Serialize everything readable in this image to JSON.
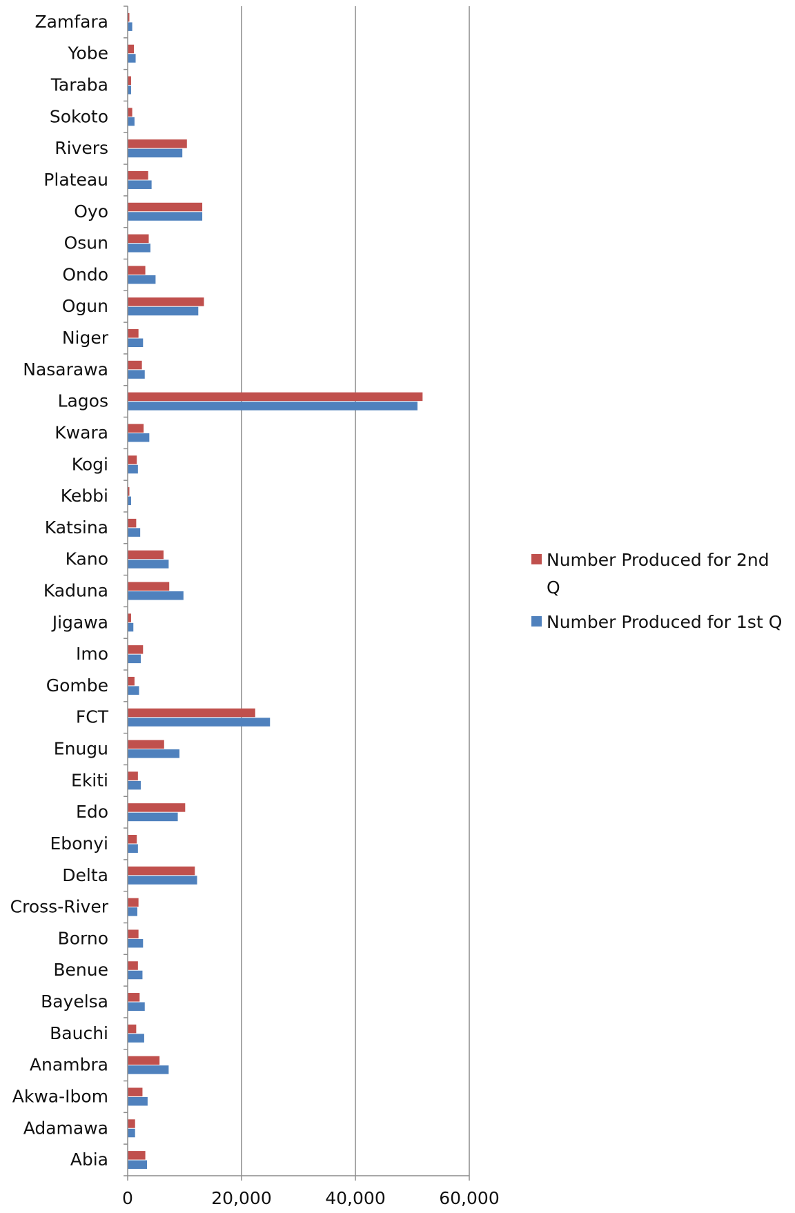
{
  "chart_data": {
    "type": "bar",
    "orientation": "horizontal",
    "categories": [
      "Zamfara",
      "Yobe",
      "Taraba",
      "Sokoto",
      "Rivers",
      "Plateau",
      "Oyo",
      "Osun",
      "Ondo",
      "Ogun",
      "Niger",
      "Nasarawa",
      "Lagos",
      "Kwara",
      "Kogi",
      "Kebbi",
      "Katsina",
      "Kano",
      "Kaduna",
      "Jigawa",
      "Imo",
      "Gombe",
      "FCT",
      "Enugu",
      "Ekiti",
      "Edo",
      "Ebonyi",
      "Delta",
      "Cross-River",
      "Borno",
      "Benue",
      "Bayelsa",
      "Bauchi",
      "Anambra",
      "Akwa-Ibom",
      "Adamawa",
      "Abia"
    ],
    "series": [
      {
        "name": "Number Produced for 2nd Q",
        "color": "#C0504D",
        "values": [
          300,
          1100,
          600,
          800,
          10400,
          3600,
          13100,
          3700,
          3100,
          13400,
          1900,
          2500,
          51800,
          2800,
          1600,
          300,
          1500,
          6300,
          7300,
          600,
          2700,
          1200,
          22400,
          6400,
          1800,
          10100,
          1600,
          11800,
          1900,
          1900,
          1800,
          2100,
          1500,
          5600,
          2600,
          1300,
          3100
        ]
      },
      {
        "name": "Number Produced for 1st Q",
        "color": "#4F81BD",
        "values": [
          800,
          1400,
          600,
          1200,
          9600,
          4200,
          13100,
          4000,
          4900,
          12400,
          2700,
          3000,
          50900,
          3800,
          1800,
          600,
          2200,
          7200,
          9800,
          1000,
          2300,
          2000,
          25000,
          9100,
          2300,
          8800,
          1800,
          12200,
          1700,
          2700,
          2600,
          3000,
          2900,
          7200,
          3500,
          1300,
          3400
        ]
      }
    ],
    "xlim": [
      0,
      60000
    ],
    "xticks": [
      "0",
      "20,000",
      "40,000",
      "60,000"
    ],
    "xtick_values": [
      0,
      20000,
      40000,
      60000
    ],
    "grid": "vertical major gridlines",
    "legend": "right",
    "title": "",
    "xlabel": "",
    "ylabel": ""
  }
}
